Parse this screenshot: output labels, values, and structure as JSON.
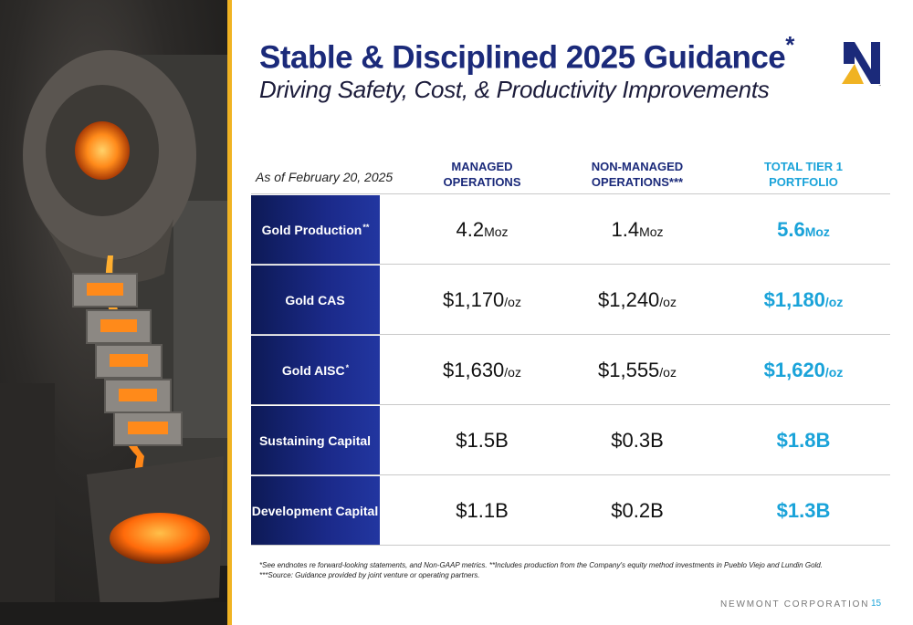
{
  "header": {
    "title": "Stable & Disciplined 2025 Guidance",
    "title_mark": "*",
    "subtitle": "Driving Safety, Cost, & Productivity Improvements"
  },
  "logo": {
    "icon": "newmont-n-logo-icon",
    "tm": "™"
  },
  "table": {
    "as_of": "As of February 20, 2025",
    "columns": [
      {
        "line1": "MANAGED",
        "line2": "OPERATIONS"
      },
      {
        "line1": "NON-MANAGED",
        "line2": "OPERATIONS***"
      },
      {
        "line1": "TOTAL TIER 1",
        "line2": "PORTFOLIO"
      }
    ],
    "rows": [
      {
        "label": "Gold Production",
        "mark": "**",
        "cells": [
          {
            "value": "4.2",
            "unit": "Moz"
          },
          {
            "value": "1.4",
            "unit": "Moz"
          },
          {
            "value": "5.6",
            "unit": "Moz"
          }
        ]
      },
      {
        "label": "Gold CAS",
        "mark": "",
        "cells": [
          {
            "value": "$1,170",
            "unit": "/oz"
          },
          {
            "value": "$1,240",
            "unit": "/oz"
          },
          {
            "value": "$1,180",
            "unit": "/oz"
          }
        ]
      },
      {
        "label": "Gold AISC",
        "mark": "*",
        "cells": [
          {
            "value": "$1,630",
            "unit": "/oz"
          },
          {
            "value": "$1,555",
            "unit": "/oz"
          },
          {
            "value": "$1,620",
            "unit": "/oz"
          }
        ]
      },
      {
        "label": "Sustaining Capital",
        "mark": "",
        "cells": [
          {
            "value": "$1.5B",
            "unit": ""
          },
          {
            "value": "$0.3B",
            "unit": ""
          },
          {
            "value": "$1.8B",
            "unit": ""
          }
        ]
      },
      {
        "label": "Development Capital",
        "mark": "",
        "cells": [
          {
            "value": "$1.1B",
            "unit": ""
          },
          {
            "value": "$0.2B",
            "unit": ""
          },
          {
            "value": "$1.3B",
            "unit": ""
          }
        ]
      }
    ]
  },
  "footnote": {
    "line1": "*See endnotes re forward-looking statements, and Non-GAAP metrics. **Includes production from the Company's equity method investments in Pueblo Viejo and Lundin Gold.",
    "line2": "***Source: Guidance provided by joint venture or operating partners."
  },
  "footer": {
    "company": "NEWMONT CORPORATION",
    "page": "15"
  },
  "colors": {
    "navy": "#1b2a7a",
    "accent_blue": "#1aa3d9",
    "gold": "#f0b323",
    "label_fill": "#1b2a8a"
  }
}
